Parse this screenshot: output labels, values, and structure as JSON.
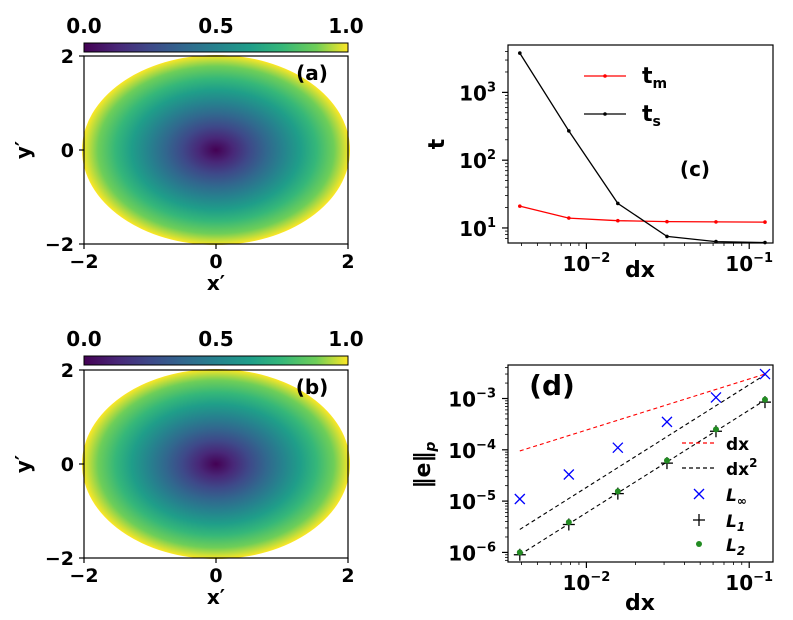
{
  "chart_data": [
    {
      "type": "heatmap",
      "panel_label": "(a)",
      "xlabel": "x′",
      "ylabel": "y′",
      "xticks": [
        "−2",
        "0",
        "2"
      ],
      "yticks": [
        "2",
        "0",
        "−2"
      ],
      "xlim": [
        -2,
        2
      ],
      "ylim": [
        -2,
        2
      ],
      "colorbar": {
        "ticks": [
          "0.0",
          "0.5",
          "1.0"
        ],
        "range": [
          0,
          1
        ],
        "colormap": "viridis"
      },
      "description_values": {
        "center_value": 0.0,
        "edge_value": 1.0
      }
    },
    {
      "type": "heatmap",
      "panel_label": "(b)",
      "xlabel": "x′",
      "ylabel": "y′",
      "xticks": [
        "−2",
        "0",
        "2"
      ],
      "yticks": [
        "2",
        "0",
        "−2"
      ],
      "xlim": [
        -2,
        2
      ],
      "ylim": [
        -2,
        2
      ],
      "colorbar": {
        "ticks": [
          "0.0",
          "0.5",
          "1.0"
        ],
        "range": [
          0,
          1
        ],
        "colormap": "viridis"
      },
      "description_values": {
        "center_value": 0.0,
        "edge_value": 1.0
      }
    },
    {
      "type": "line",
      "panel_label": "(c)",
      "xlabel": "dx",
      "ylabel": "t",
      "xscale": "log",
      "yscale": "log",
      "xlim": [
        0.0033,
        0.14
      ],
      "ylim": [
        6,
        5000
      ],
      "xticks": [
        {
          "v": 0.01,
          "label": "10",
          "exp": "−2"
        },
        {
          "v": 0.1,
          "label": "10",
          "exp": "−1"
        }
      ],
      "yticks": [
        {
          "v": 10,
          "label": "10",
          "exp": "1"
        },
        {
          "v": 100,
          "label": "10",
          "exp": "2"
        },
        {
          "v": 1000,
          "label": "10",
          "exp": "3"
        }
      ],
      "x": [
        0.0039,
        0.0078,
        0.0156,
        0.03125,
        0.0625,
        0.125
      ],
      "series": [
        {
          "name": "t",
          "sub": "m",
          "color": "#ff0000",
          "values": [
            21,
            14,
            12.8,
            12.4,
            12.3,
            12.2
          ]
        },
        {
          "name": "t",
          "sub": "s",
          "color": "#000000",
          "values": [
            3800,
            270,
            23,
            7.5,
            6.3,
            6.1
          ]
        }
      ],
      "legend": "upper-right"
    },
    {
      "type": "scatter",
      "panel_label": "(d)",
      "xlabel": "dx",
      "ylabel": "‖e‖",
      "ylabel_sub": "p",
      "xscale": "log",
      "yscale": "log",
      "xlim": [
        0.0033,
        0.14
      ],
      "ylim": [
        6.5e-07,
        0.0045
      ],
      "xticks": [
        {
          "v": 0.01,
          "label": "10",
          "exp": "−2"
        },
        {
          "v": 0.1,
          "label": "10",
          "exp": "−1"
        }
      ],
      "yticks": [
        {
          "v": 1e-06,
          "label": "10",
          "exp": "−6"
        },
        {
          "v": 1e-05,
          "label": "10",
          "exp": "−5"
        },
        {
          "v": 0.0001,
          "label": "10",
          "exp": "−4"
        },
        {
          "v": 0.001,
          "label": "10",
          "exp": "−3"
        }
      ],
      "x": [
        0.0039,
        0.0078,
        0.0156,
        0.03125,
        0.0625,
        0.125
      ],
      "reference_lines": [
        {
          "name": "dx",
          "sup": "",
          "color": "#ff0000",
          "x": [
            0.0039,
            0.125
          ],
          "y": [
            9.5e-05,
            0.003
          ]
        },
        {
          "name": "dx",
          "sup": "2",
          "color": "#000000",
          "x": [
            0.0039,
            0.125
          ],
          "y": [
            2.8e-06,
            0.0029
          ]
        },
        {
          "name": "dx",
          "sup": "2",
          "color": "#000000",
          "x": [
            0.0039,
            0.125
          ],
          "y": [
            9e-07,
            0.00093
          ]
        }
      ],
      "series": [
        {
          "name": "L",
          "sub": "∞",
          "marker": "x",
          "color": "#0000ff",
          "values": [
            1.1e-05,
            3.3e-05,
            0.00011,
            0.00035,
            0.00105,
            0.003
          ]
        },
        {
          "name": "L",
          "sub": "1",
          "marker": "+",
          "color": "#000000",
          "values": [
            9e-07,
            3.5e-06,
            1.4e-05,
            5.5e-05,
            0.00023,
            0.00085
          ]
        },
        {
          "name": "L",
          "sub": "2",
          "marker": "o",
          "color": "#228b22",
          "values": [
            1e-06,
            3.9e-06,
            1.55e-05,
            6.2e-05,
            0.00025,
            0.00095
          ]
        }
      ],
      "legend": "lower-right"
    }
  ]
}
